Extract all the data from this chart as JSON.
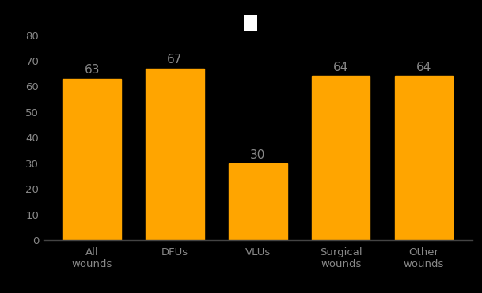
{
  "categories": [
    "All\nwounds",
    "DFUs",
    "VLUs",
    "Surgical\nwounds",
    "Other\nwounds"
  ],
  "values": [
    63,
    67,
    30,
    64,
    64
  ],
  "bar_color": "#FFA500",
  "bar_edge_color": "#FFA500",
  "background_color": "#000000",
  "text_color": "#888888",
  "tick_color": "#888888",
  "ylim": [
    0,
    80
  ],
  "yticks": [
    0,
    10,
    20,
    30,
    40,
    50,
    60,
    70,
    80
  ],
  "legend_box_color": "#ffffff",
  "bar_width": 0.7,
  "figsize": [
    6.09,
    3.71
  ],
  "dpi": 100
}
